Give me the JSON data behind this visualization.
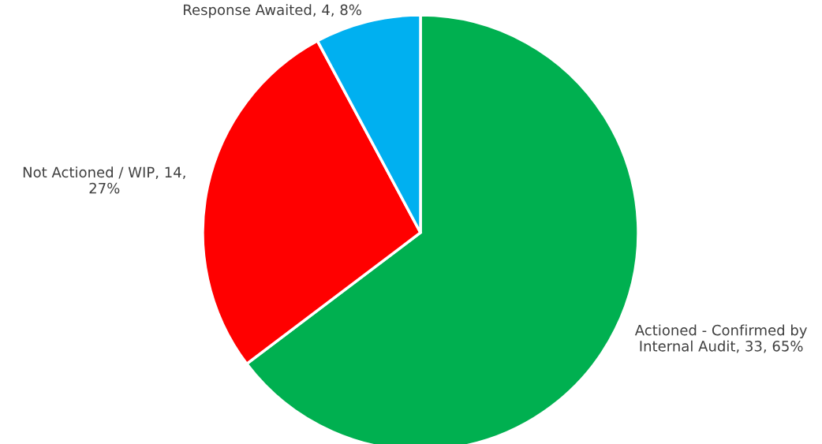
{
  "chart_data": {
    "type": "pie",
    "categories": [
      "Actioned - Confirmed by Internal Audit",
      "Not Actioned / WIP",
      "Response Awaited"
    ],
    "values": [
      33,
      14,
      4
    ],
    "colors": [
      "#00b050",
      "#ff0000",
      "#00b0f0"
    ],
    "value_labels": [
      "33, 65%",
      "14, 27%",
      "4, 8%"
    ],
    "legend": false
  }
}
